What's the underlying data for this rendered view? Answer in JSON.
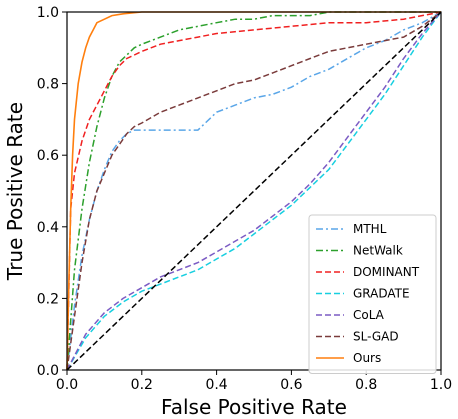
{
  "chart_data": {
    "type": "line",
    "xlabel": "False Positive Rate",
    "ylabel": "True Positive Rate",
    "xlim": [
      0.0,
      1.0
    ],
    "ylim": [
      0.0,
      1.0
    ],
    "xticks": [
      "0.0",
      "0.2",
      "0.4",
      "0.6",
      "0.8",
      "1.0"
    ],
    "yticks": [
      "0.0",
      "0.2",
      "0.4",
      "0.6",
      "0.8",
      "1.0"
    ],
    "grid": false,
    "legend_position": "lower-right",
    "series": [
      {
        "name": "MTHL",
        "color": "#5aa6e8",
        "dash": "dashdot",
        "x": [
          0.0,
          0.02,
          0.04,
          0.06,
          0.08,
          0.1,
          0.12,
          0.14,
          0.16,
          0.18,
          0.2,
          0.25,
          0.3,
          0.35,
          0.4,
          0.45,
          0.5,
          0.55,
          0.6,
          0.65,
          0.7,
          0.75,
          0.8,
          0.85,
          0.9,
          0.95,
          1.0
        ],
        "y": [
          0.0,
          0.18,
          0.32,
          0.42,
          0.5,
          0.56,
          0.61,
          0.64,
          0.66,
          0.67,
          0.67,
          0.67,
          0.67,
          0.67,
          0.72,
          0.74,
          0.76,
          0.77,
          0.79,
          0.82,
          0.84,
          0.87,
          0.9,
          0.92,
          0.95,
          0.97,
          1.0
        ]
      },
      {
        "name": "NetWalk",
        "color": "#2ca02c",
        "dash": "dashdot",
        "x": [
          0.0,
          0.02,
          0.04,
          0.06,
          0.08,
          0.1,
          0.12,
          0.14,
          0.16,
          0.18,
          0.2,
          0.25,
          0.3,
          0.35,
          0.4,
          0.45,
          0.5,
          0.55,
          0.6,
          0.65,
          0.7,
          0.8,
          0.9,
          1.0
        ],
        "y": [
          0.0,
          0.28,
          0.45,
          0.58,
          0.68,
          0.76,
          0.82,
          0.86,
          0.88,
          0.9,
          0.91,
          0.93,
          0.95,
          0.96,
          0.97,
          0.98,
          0.98,
          0.99,
          0.99,
          0.99,
          1.0,
          1.0,
          1.0,
          1.0
        ]
      },
      {
        "name": "DOMINANT",
        "color": "#f02020",
        "dash": "dashed",
        "x": [
          0.0,
          0.01,
          0.02,
          0.04,
          0.06,
          0.08,
          0.1,
          0.12,
          0.14,
          0.16,
          0.18,
          0.2,
          0.25,
          0.3,
          0.35,
          0.4,
          0.5,
          0.6,
          0.7,
          0.8,
          0.9,
          1.0
        ],
        "y": [
          0.0,
          0.45,
          0.55,
          0.64,
          0.7,
          0.74,
          0.78,
          0.82,
          0.85,
          0.87,
          0.88,
          0.89,
          0.91,
          0.92,
          0.93,
          0.94,
          0.95,
          0.96,
          0.97,
          0.97,
          0.98,
          1.0
        ]
      },
      {
        "name": "GRADATE",
        "color": "#17cfe0",
        "dash": "dashed",
        "x": [
          0.0,
          0.05,
          0.1,
          0.15,
          0.2,
          0.25,
          0.3,
          0.35,
          0.4,
          0.45,
          0.5,
          0.55,
          0.6,
          0.65,
          0.7,
          0.75,
          0.8,
          0.85,
          0.9,
          0.95,
          1.0
        ],
        "y": [
          0.0,
          0.09,
          0.15,
          0.19,
          0.22,
          0.24,
          0.26,
          0.28,
          0.31,
          0.34,
          0.38,
          0.42,
          0.46,
          0.51,
          0.56,
          0.63,
          0.7,
          0.77,
          0.85,
          0.93,
          1.0
        ]
      },
      {
        "name": "CoLA",
        "color": "#7b5bc4",
        "dash": "dashed",
        "x": [
          0.0,
          0.05,
          0.1,
          0.15,
          0.2,
          0.25,
          0.3,
          0.35,
          0.4,
          0.45,
          0.5,
          0.55,
          0.6,
          0.65,
          0.7,
          0.75,
          0.8,
          0.85,
          0.9,
          0.95,
          1.0
        ],
        "y": [
          0.0,
          0.1,
          0.16,
          0.2,
          0.23,
          0.26,
          0.28,
          0.3,
          0.33,
          0.36,
          0.39,
          0.43,
          0.47,
          0.52,
          0.58,
          0.65,
          0.72,
          0.79,
          0.87,
          0.94,
          1.0
        ]
      },
      {
        "name": "SL-GAD",
        "color": "#7a3b3b",
        "dash": "dashed",
        "x": [
          0.0,
          0.02,
          0.04,
          0.06,
          0.08,
          0.1,
          0.12,
          0.14,
          0.16,
          0.18,
          0.2,
          0.25,
          0.3,
          0.35,
          0.4,
          0.45,
          0.5,
          0.55,
          0.6,
          0.65,
          0.7,
          0.75,
          0.8,
          0.85,
          0.9,
          0.95,
          1.0
        ],
        "y": [
          0.0,
          0.15,
          0.3,
          0.42,
          0.5,
          0.55,
          0.6,
          0.63,
          0.66,
          0.68,
          0.69,
          0.72,
          0.74,
          0.76,
          0.78,
          0.8,
          0.81,
          0.83,
          0.85,
          0.87,
          0.89,
          0.9,
          0.91,
          0.92,
          0.93,
          0.96,
          1.0
        ]
      },
      {
        "name": "Ours",
        "color": "#ff7f0e",
        "dash": "solid",
        "x": [
          0.0,
          0.005,
          0.01,
          0.015,
          0.02,
          0.03,
          0.04,
          0.05,
          0.06,
          0.07,
          0.08,
          0.1,
          0.12,
          0.15,
          0.2,
          0.3,
          0.5,
          0.7,
          1.0
        ],
        "y": [
          0.0,
          0.25,
          0.45,
          0.6,
          0.7,
          0.8,
          0.86,
          0.9,
          0.93,
          0.95,
          0.97,
          0.98,
          0.99,
          0.995,
          1.0,
          1.0,
          1.0,
          1.0,
          1.0
        ]
      },
      {
        "name": "",
        "color": "#000000",
        "dash": "dashed",
        "x": [
          0.0,
          1.0
        ],
        "y": [
          0.0,
          1.0
        ]
      }
    ]
  }
}
